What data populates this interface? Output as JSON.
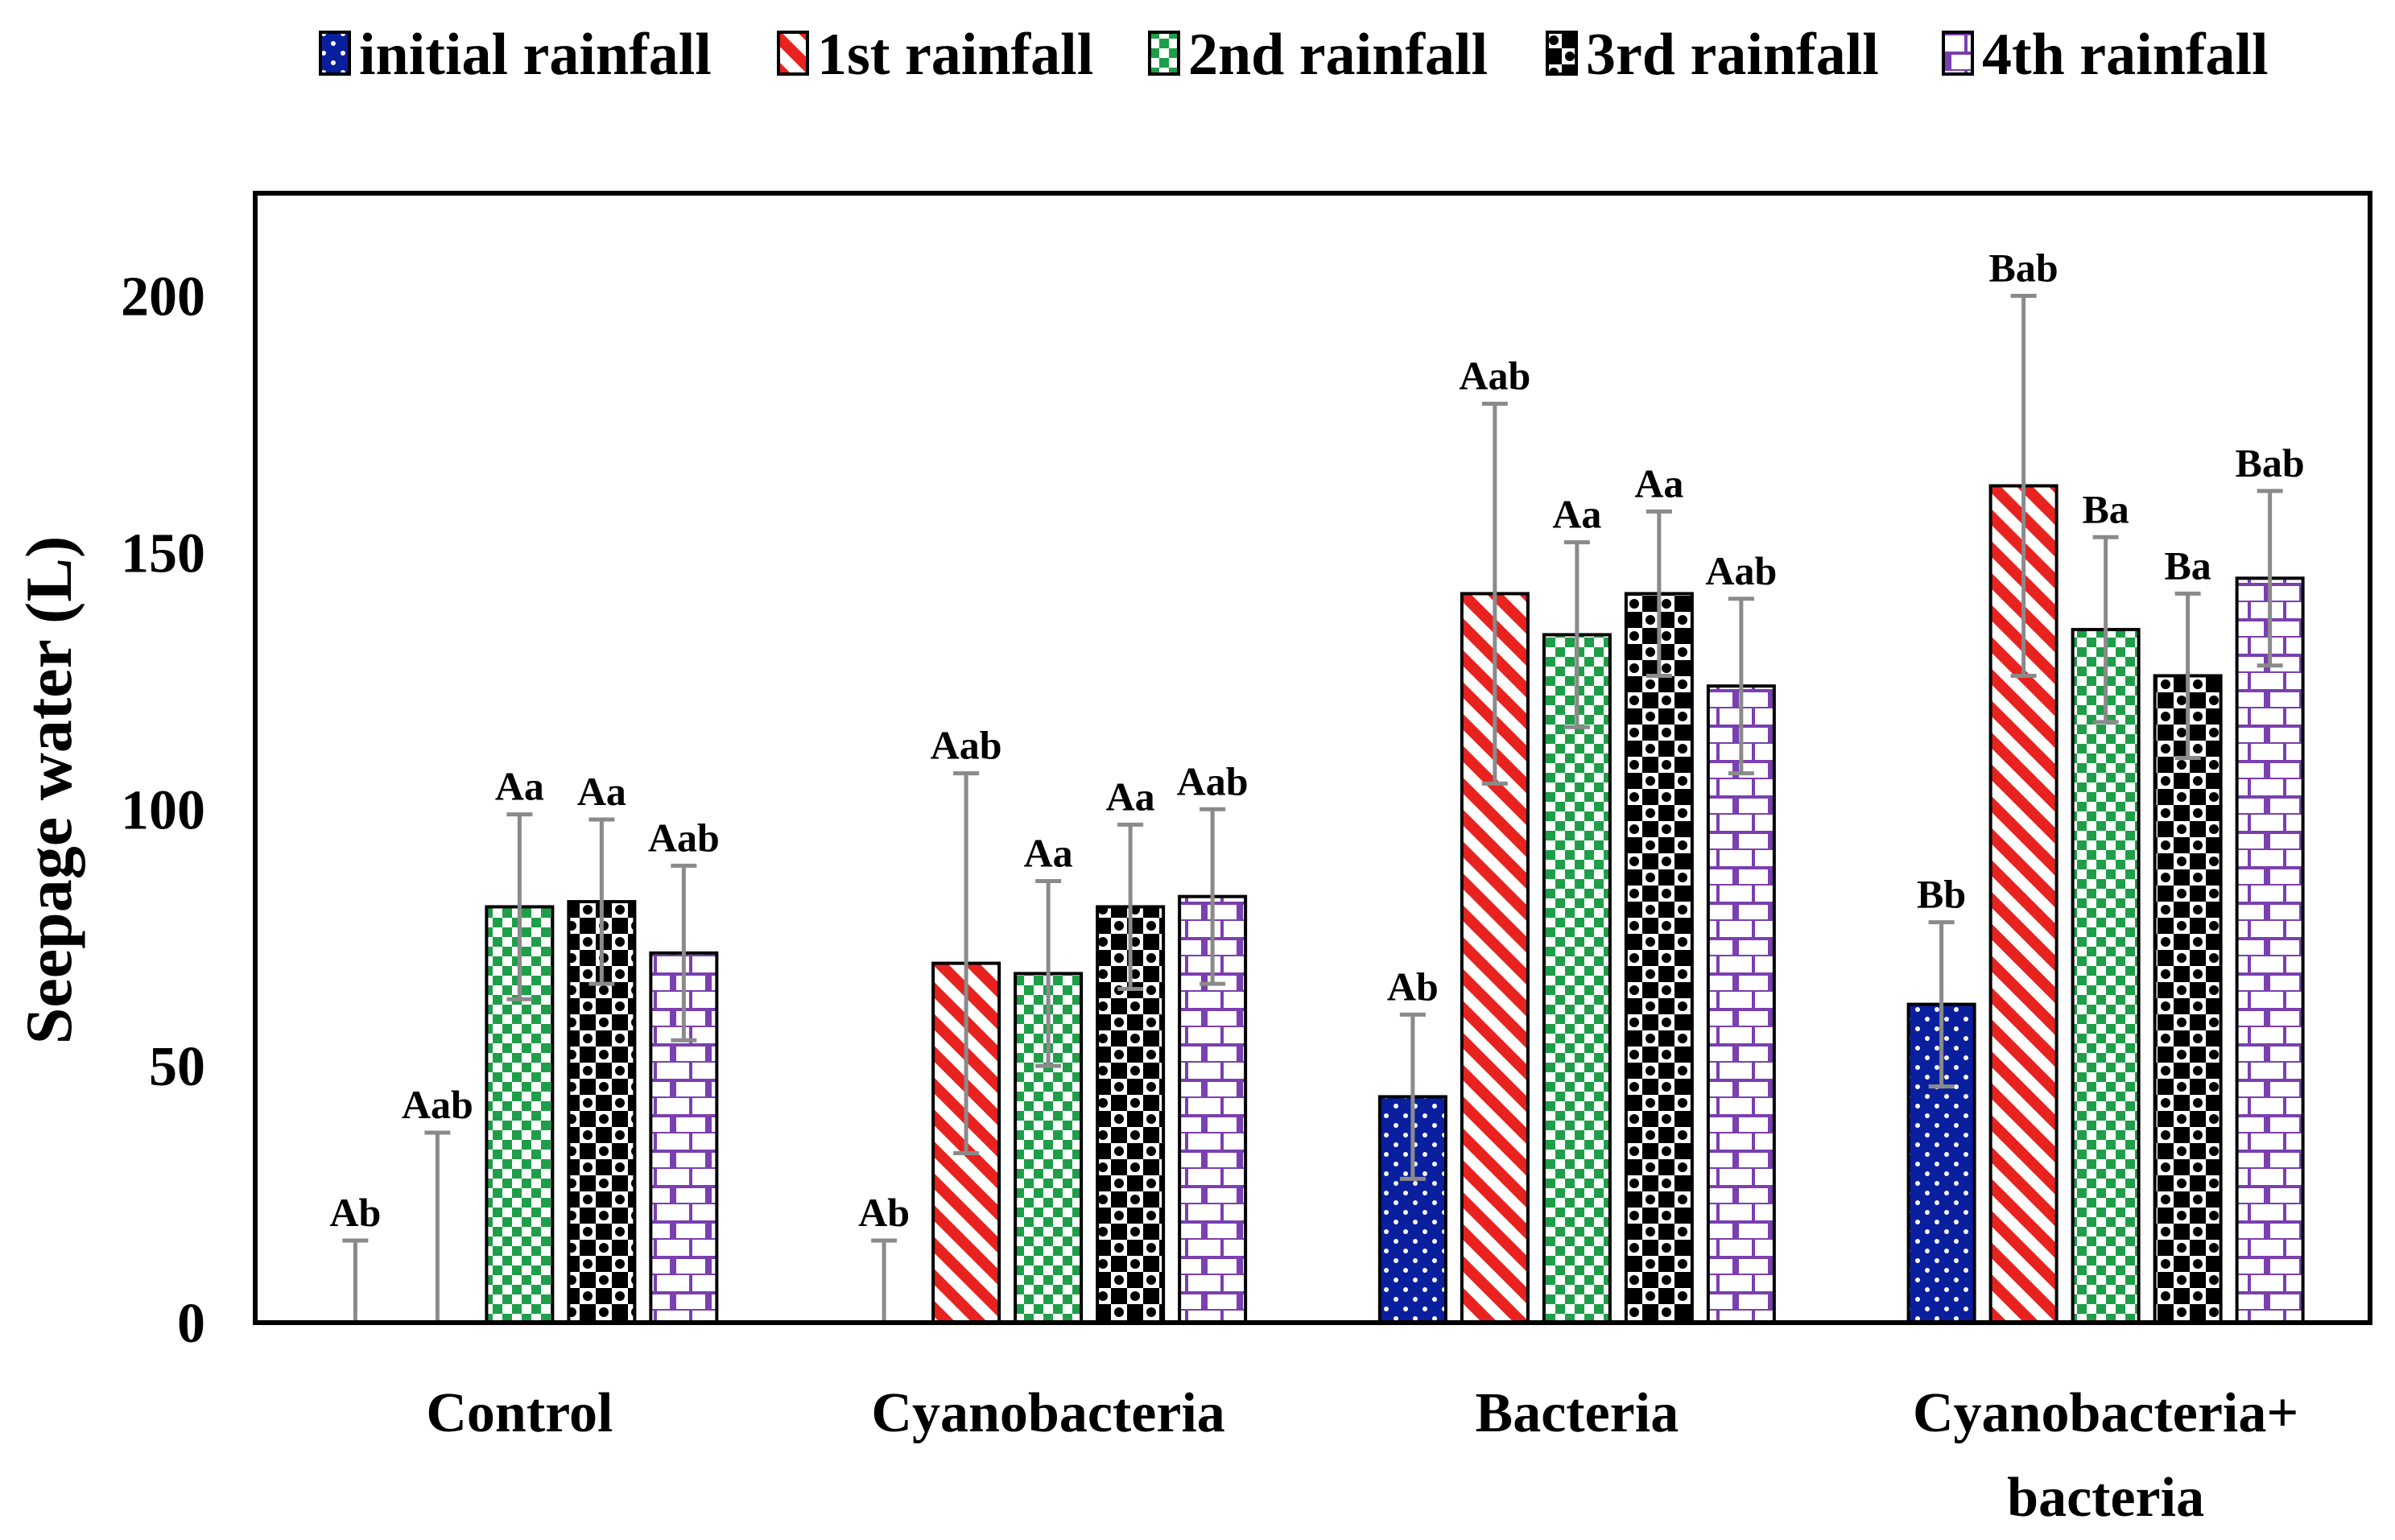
{
  "chart_data": {
    "type": "bar",
    "title": "",
    "xlabel": "",
    "ylabel": "Seepage water (L)",
    "ylim": [
      0,
      220
    ],
    "yticks": [
      0,
      50,
      100,
      150,
      200
    ],
    "grid": false,
    "legend_position": "top",
    "categories": [
      [
        "Control"
      ],
      [
        "Cyanobacteria"
      ],
      [
        "Bacteria"
      ],
      [
        "Cyanobacteria+",
        "bacteria"
      ]
    ],
    "series": [
      {
        "name": "initial rainfall",
        "color": "#0a1f9e",
        "pattern": "dots",
        "values": [
          0,
          0,
          44,
          62
        ],
        "error": [
          16,
          16,
          16,
          16
        ],
        "labels": [
          "Ab",
          "Ab",
          "Ab",
          "Bb"
        ]
      },
      {
        "name": "1st rainfall",
        "color": "#e8231f",
        "pattern": "diagonal-stripes",
        "values": [
          0,
          70,
          142,
          163
        ],
        "error": [
          37,
          37,
          37,
          37
        ],
        "labels": [
          "Aab",
          "Aab",
          "Aab",
          "Bab"
        ]
      },
      {
        "name": "2nd rainfall",
        "color": "#1e9e48",
        "pattern": "checker",
        "values": [
          81,
          68,
          134,
          135
        ],
        "error": [
          18,
          18,
          18,
          18
        ],
        "labels": [
          "Aa",
          "Aa",
          "Aa",
          "Ba"
        ]
      },
      {
        "name": "3rd rainfall",
        "color": "#000000",
        "pattern": "large-checker",
        "values": [
          82,
          81,
          142,
          126
        ],
        "error": [
          16,
          16,
          16,
          16
        ],
        "labels": [
          "Aa",
          "Aa",
          "Aa",
          "Ba"
        ]
      },
      {
        "name": "4th rainfall",
        "color": "#7a3fb0",
        "pattern": "brick",
        "values": [
          72,
          83,
          124,
          145
        ],
        "error": [
          17,
          17,
          17,
          17
        ],
        "labels": [
          "Aab",
          "Aab",
          "Aab",
          "Bab"
        ]
      }
    ]
  }
}
